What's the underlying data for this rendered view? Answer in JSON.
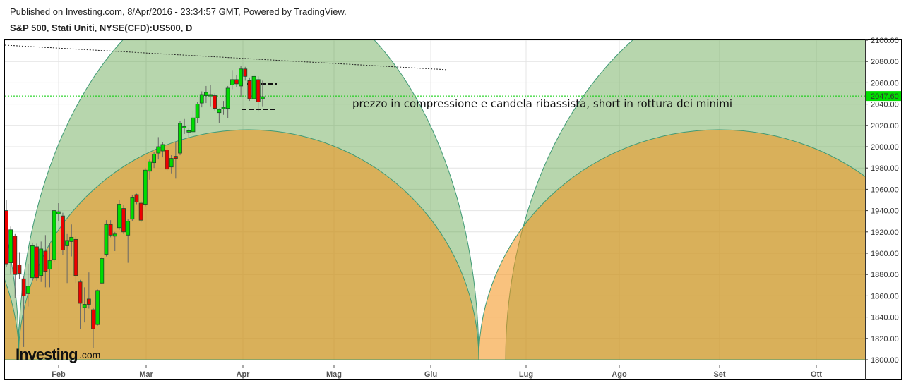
{
  "header": {
    "published": "Published on Investing.com, 8/Apr/2016 - 23:34:57 GMT, Powered by TradingView.",
    "title": "S&P 500, Stati Uniti, NYSE(CFD):US500, D"
  },
  "chart_data": {
    "type": "candlestick",
    "title": "S&P 500, Stati Uniti, NYSE(CFD):US500, D",
    "ylim": [
      1800,
      2100
    ],
    "yticks": [
      "2100.00",
      "2080.00",
      "2060.00",
      "2040.00",
      "2020.00",
      "2000.00",
      "1980.00",
      "1960.00",
      "1940.00",
      "1920.00",
      "1900.00",
      "1880.00",
      "1860.00",
      "1840.00",
      "1820.00",
      "1800.00"
    ],
    "ytick_values": [
      2100,
      2080,
      2060,
      2040,
      2020,
      2000,
      1980,
      1960,
      1940,
      1920,
      1900,
      1880,
      1860,
      1840,
      1820,
      1800
    ],
    "xticks": [
      "Feb",
      "Mar",
      "Apr",
      "Mag",
      "Giu",
      "Lug",
      "Ago",
      "Set",
      "Ott"
    ],
    "last_price": 2047.6,
    "last_price_label": "2047.60",
    "annotation": "prezzo in compressione e candela ribassista, short in rottura dei minimi",
    "watermark": "Investing.com",
    "candles_ohlc": [
      [
        1940,
        1950,
        1887,
        1890
      ],
      [
        1891,
        1925,
        1880,
        1922
      ],
      [
        1916,
        1918,
        1858,
        1880
      ],
      [
        1889,
        1901,
        1876,
        1881
      ],
      [
        1876,
        1878,
        1812,
        1860
      ],
      [
        1862,
        1890,
        1850,
        1869
      ],
      [
        1877,
        1910,
        1874,
        1907
      ],
      [
        1906,
        1909,
        1874,
        1877
      ],
      [
        1879,
        1911,
        1873,
        1904
      ],
      [
        1902,
        1917,
        1868,
        1883
      ],
      [
        1885,
        1909,
        1868,
        1893
      ],
      [
        1894,
        1940,
        1892,
        1940
      ],
      [
        1937,
        1947,
        1930,
        1939
      ],
      [
        1935,
        1938,
        1898,
        1903
      ],
      [
        1907,
        1918,
        1872,
        1912
      ],
      [
        1911,
        1927,
        1897,
        1915
      ],
      [
        1913,
        1916,
        1872,
        1879
      ],
      [
        1873,
        1875,
        1829,
        1853
      ],
      [
        1849,
        1868,
        1835,
        1852
      ],
      [
        1857,
        1882,
        1848,
        1852
      ],
      [
        1847,
        1849,
        1811,
        1829
      ],
      [
        1833,
        1866,
        1832,
        1865
      ],
      [
        1872,
        1896,
        1871,
        1895
      ],
      [
        1899,
        1931,
        1897,
        1927
      ],
      [
        1927,
        1931,
        1915,
        1917
      ],
      [
        1916,
        1920,
        1902,
        1918
      ],
      [
        1924,
        1950,
        1922,
        1946
      ],
      [
        1942,
        1945,
        1918,
        1920
      ],
      [
        1917,
        1932,
        1891,
        1930
      ],
      [
        1932,
        1955,
        1930,
        1952
      ],
      [
        1955,
        1956,
        1946,
        1948
      ],
      [
        1947,
        1949,
        1929,
        1931
      ],
      [
        1946,
        1980,
        1944,
        1978
      ],
      [
        1977,
        1988,
        1969,
        1986
      ],
      [
        1985,
        1995,
        1980,
        1993
      ],
      [
        1994,
        2009,
        1988,
        2000
      ],
      [
        1996,
        2004,
        1990,
        2002
      ],
      [
        1997,
        1999,
        1977,
        1979
      ],
      [
        1981,
        1992,
        1975,
        1989
      ],
      [
        1991,
        2005,
        1970,
        1989
      ],
      [
        1994,
        2024,
        1992,
        2022
      ],
      [
        2019,
        2026,
        2012,
        2019
      ],
      [
        2015,
        2017,
        2008,
        2015
      ],
      [
        2014,
        2034,
        2011,
        2027
      ],
      [
        2027,
        2042,
        2022,
        2040
      ],
      [
        2041,
        2052,
        2037,
        2049
      ],
      [
        2048,
        2057,
        2041,
        2051
      ],
      [
        2049,
        2058,
        2038,
        2049
      ],
      [
        2048,
        2050,
        2034,
        2036
      ],
      [
        2032,
        2036,
        2022,
        2035
      ],
      [
        2037,
        2043,
        2030,
        2037
      ],
      [
        2036,
        2057,
        2027,
        2055
      ],
      [
        2058,
        2072,
        2054,
        2063
      ],
      [
        2063,
        2067,
        2056,
        2059
      ],
      [
        2057,
        2076,
        2047,
        2073
      ],
      [
        2073,
        2075,
        2062,
        2066
      ],
      [
        2062,
        2065,
        2043,
        2045
      ],
      [
        2045,
        2068,
        2043,
        2066
      ],
      [
        2063,
        2066,
        2033,
        2042
      ],
      [
        2045,
        2062,
        2038,
        2047
      ]
    ],
    "cycle_arcs": [
      {
        "name": "cycle-0",
        "fill": "green"
      },
      {
        "name": "cycle-0",
        "fill": "orange"
      },
      {
        "name": "cycle-1",
        "fill": "green"
      },
      {
        "name": "cycle-1",
        "fill": "orange"
      },
      {
        "name": "cycle-2",
        "fill": "green"
      },
      {
        "name": "cycle-2",
        "fill": "orange"
      }
    ],
    "grid": true
  },
  "colors": {
    "up": "#00dd00",
    "down": "#ee0000",
    "green_zone": "rgba(76,153,51,0.4)",
    "orange_zone": "rgba(245,146,25,0.56)",
    "arc_stroke": "#3f9a75",
    "price_line": "#00cc00"
  }
}
